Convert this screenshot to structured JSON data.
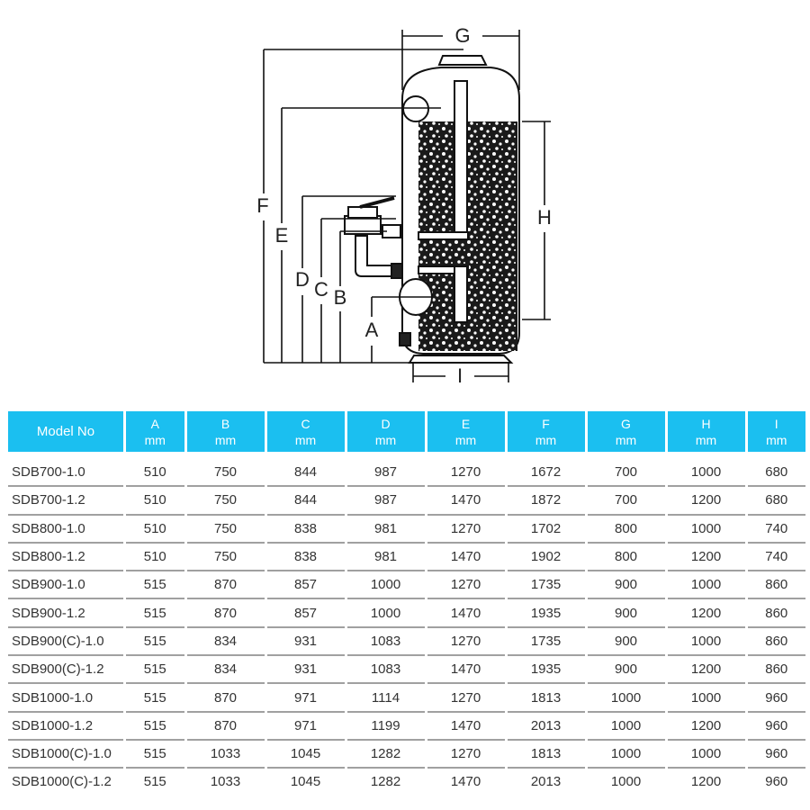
{
  "diagram": {
    "labels": {
      "A": "A",
      "B": "B",
      "C": "C",
      "D": "D",
      "E": "E",
      "F": "F",
      "G": "G",
      "H": "H",
      "I": "I"
    }
  },
  "table": {
    "header_color": "#1bbff0",
    "columns": [
      {
        "label": "Model No",
        "unit": ""
      },
      {
        "label": "A",
        "unit": "mm"
      },
      {
        "label": "B",
        "unit": "mm"
      },
      {
        "label": "C",
        "unit": "mm"
      },
      {
        "label": "D",
        "unit": "mm"
      },
      {
        "label": "E",
        "unit": "mm"
      },
      {
        "label": "F",
        "unit": "mm"
      },
      {
        "label": "G",
        "unit": "mm"
      },
      {
        "label": "H",
        "unit": "mm"
      },
      {
        "label": "I",
        "unit": "mm"
      }
    ],
    "rows": [
      [
        "SDB700-1.0",
        "510",
        "750",
        "844",
        "987",
        "1270",
        "1672",
        "700",
        "1000",
        "680"
      ],
      [
        "SDB700-1.2",
        "510",
        "750",
        "844",
        "987",
        "1470",
        "1872",
        "700",
        "1200",
        "680"
      ],
      [
        "SDB800-1.0",
        "510",
        "750",
        "838",
        "981",
        "1270",
        "1702",
        "800",
        "1000",
        "740"
      ],
      [
        "SDB800-1.2",
        "510",
        "750",
        "838",
        "981",
        "1470",
        "1902",
        "800",
        "1200",
        "740"
      ],
      [
        "SDB900-1.0",
        "515",
        "870",
        "857",
        "1000",
        "1270",
        "1735",
        "900",
        "1000",
        "860"
      ],
      [
        "SDB900-1.2",
        "515",
        "870",
        "857",
        "1000",
        "1470",
        "1935",
        "900",
        "1200",
        "860"
      ],
      [
        "SDB900(C)-1.0",
        "515",
        "834",
        "931",
        "1083",
        "1270",
        "1735",
        "900",
        "1000",
        "860"
      ],
      [
        "SDB900(C)-1.2",
        "515",
        "834",
        "931",
        "1083",
        "1470",
        "1935",
        "900",
        "1200",
        "860"
      ],
      [
        "SDB1000-1.0",
        "515",
        "870",
        "971",
        "1114",
        "1270",
        "1813",
        "1000",
        "1000",
        "960"
      ],
      [
        "SDB1000-1.2",
        "515",
        "870",
        "971",
        "1199",
        "1470",
        "2013",
        "1000",
        "1200",
        "960"
      ],
      [
        "SDB1000(C)-1.0",
        "515",
        "1033",
        "1045",
        "1282",
        "1270",
        "1813",
        "1000",
        "1000",
        "960"
      ],
      [
        "SDB1000(C)-1.2",
        "515",
        "1033",
        "1045",
        "1282",
        "1470",
        "2013",
        "1000",
        "1200",
        "960"
      ]
    ]
  }
}
